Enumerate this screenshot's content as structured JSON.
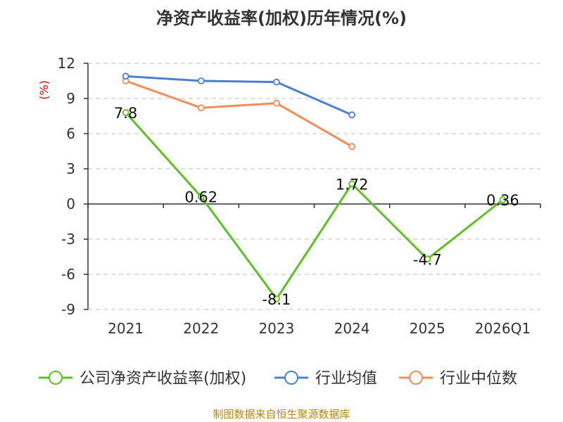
{
  "chart_data": {
    "type": "line",
    "title": "净资产收益率(加权)历年情况(%)",
    "ylabel": "(%)",
    "categories": [
      "2021",
      "2022",
      "2023",
      "2024",
      "2025",
      "2026Q1"
    ],
    "ylim": [
      -9,
      12
    ],
    "yticks": [
      12,
      9,
      6,
      3,
      0,
      -3,
      -6,
      -9
    ],
    "grid": true,
    "legend_position": "bottom",
    "series": [
      {
        "name": "公司净资产收益率(加权)",
        "color": "#5cc21f",
        "values": [
          7.8,
          0.62,
          -8.1,
          1.72,
          -4.7,
          0.36
        ],
        "labels": [
          "7.8",
          "0.62",
          "-8.1",
          "1.72",
          "-4.7",
          "0.36"
        ]
      },
      {
        "name": "行业均值",
        "color": "#4a7fd6",
        "values": [
          10.9,
          10.5,
          10.4,
          7.6,
          null,
          null
        ]
      },
      {
        "name": "行业中位数",
        "color": "#f58b55",
        "values": [
          10.5,
          8.2,
          8.6,
          4.9,
          null,
          null
        ]
      }
    ],
    "source": "制图数据来自恒生聚源数据库"
  }
}
